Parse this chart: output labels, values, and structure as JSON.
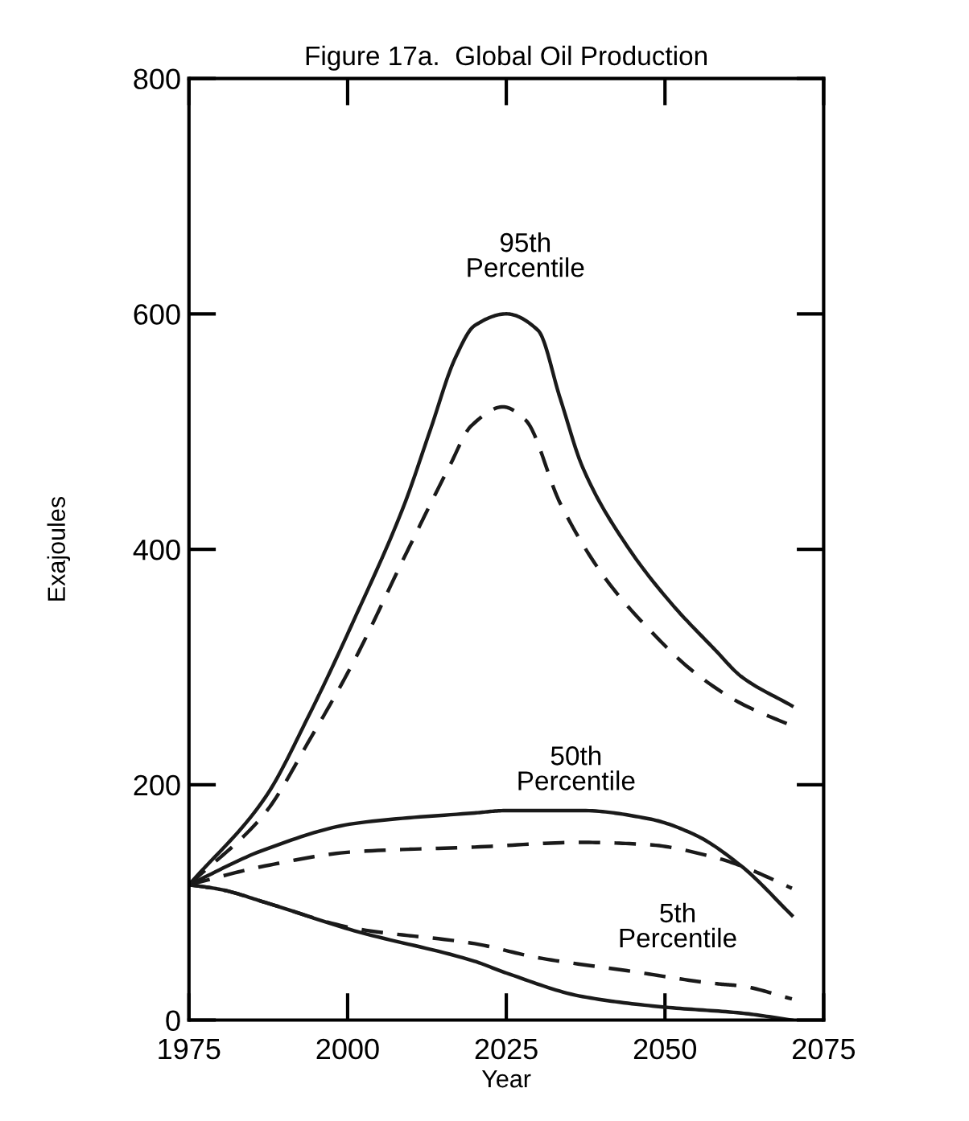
{
  "chart_data": {
    "type": "line",
    "title": "Figure 17a.  Global Oil Production",
    "xlabel": "Year",
    "ylabel": "Exajoules",
    "xlim": [
      1975,
      2075
    ],
    "ylim": [
      0,
      800
    ],
    "xticks": [
      1975,
      2000,
      2025,
      2050,
      2075
    ],
    "yticks": [
      0,
      200,
      400,
      600,
      800
    ],
    "grid": false,
    "legend": false,
    "marker": "none",
    "annotations": [
      "95th\nPercentile",
      "50th\nPercentile",
      "5th\nPercentile"
    ],
    "series": [
      {
        "color": "#1a1a1a",
        "line_style": "solid",
        "x": [
          1975,
          1987,
          1994,
          2001,
          2009,
          2013,
          2017,
          2020,
          2025,
          2030,
          2033.5,
          2037,
          2044,
          2051,
          2058,
          2062,
          2070
        ],
        "values": [
          115,
          189,
          260,
          340,
          439,
          501,
          563,
          590,
          600,
          586,
          528,
          470,
          403,
          354,
          314,
          292,
          267
        ]
      },
      {
        "color": "#1a1a1a",
        "line_style": "dashed",
        "x": [
          1975,
          1987,
          1994,
          2001,
          2009,
          2016,
          2019.5,
          2024.5,
          2028,
          2033.5,
          2040.5,
          2047.5,
          2054.5,
          2062,
          2070
        ],
        "values": [
          115,
          176,
          238,
          305,
          394,
          470,
          505,
          521,
          510,
          439,
          376,
          332,
          296,
          269,
          250
        ]
      },
      {
        "color": "#1a1a1a",
        "line_style": "solid",
        "x": [
          1975,
          1987,
          2001,
          2020,
          2025,
          2037,
          2047.5,
          2054.5,
          2062,
          2070
        ],
        "values": [
          115,
          145,
          167,
          176,
          178,
          178,
          171,
          158,
          131,
          89
        ]
      },
      {
        "color": "#1a1a1a",
        "line_style": "dashed",
        "x": [
          1975,
          1987,
          2001,
          2020,
          2037,
          2047.5,
          2058,
          2062,
          2070
        ],
        "values": [
          115,
          131,
          143,
          147,
          151,
          149,
          138,
          131,
          112
        ]
      },
      {
        "color": "#1a1a1a",
        "line_style": "solid",
        "x": [
          1975,
          1980,
          1987,
          2001,
          2020,
          2025,
          2037,
          2050,
          2062,
          2070
        ],
        "values": [
          115,
          111,
          100,
          76,
          50,
          40,
          20,
          11,
          6,
          0
        ]
      },
      {
        "color": "#1a1a1a",
        "line_style": "dashed",
        "x": [
          1975,
          1980,
          1987,
          2001,
          2020,
          2030,
          2044,
          2058,
          2062,
          2070
        ],
        "values": [
          115,
          111,
          100,
          78,
          65,
          53,
          42,
          31,
          29,
          18
        ]
      }
    ]
  }
}
